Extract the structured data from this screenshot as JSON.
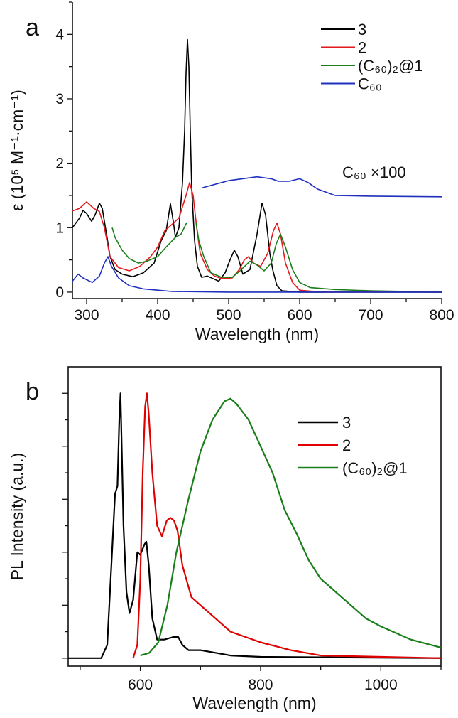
{
  "chart_data": [
    {
      "type": "line",
      "panel": "a",
      "xlabel": "Wavelength (nm)",
      "ylabel": "ε (10⁵ M⁻¹·cm⁻¹)",
      "xlim": [
        280,
        800
      ],
      "ylim": [
        -0.1,
        4.5
      ],
      "xticks": [
        300,
        400,
        500,
        600,
        700,
        800
      ],
      "yticks": [
        0,
        1,
        2,
        3,
        4
      ],
      "legend": "top-right",
      "annotation": "C₆₀ ×100",
      "series": [
        {
          "name": "3",
          "color": "#000000",
          "x": [
            280,
            290,
            295,
            300,
            307,
            312,
            318,
            322,
            328,
            333,
            340,
            350,
            365,
            380,
            395,
            405,
            412,
            418,
            422,
            425,
            430,
            435,
            438,
            440,
            442,
            444,
            446,
            448,
            452,
            456,
            462,
            470,
            480,
            486,
            495,
            502,
            508,
            513,
            520,
            530,
            540,
            547,
            552,
            558,
            562,
            568,
            575,
            600,
            800
          ],
          "y": [
            1.0,
            1.15,
            1.27,
            1.22,
            1.1,
            1.2,
            1.38,
            1.3,
            0.9,
            0.55,
            0.35,
            0.28,
            0.24,
            0.3,
            0.45,
            0.8,
            0.95,
            1.37,
            1.1,
            0.85,
            1.0,
            1.7,
            2.5,
            3.4,
            3.92,
            3.5,
            2.5,
            1.6,
            0.8,
            0.4,
            0.23,
            0.25,
            0.2,
            0.17,
            0.3,
            0.5,
            0.65,
            0.55,
            0.28,
            0.35,
            0.9,
            1.38,
            1.2,
            0.6,
            0.35,
            0.1,
            0.02,
            0,
            0
          ]
        },
        {
          "name": "2",
          "color": "#e31a1c",
          "x": [
            280,
            290,
            300,
            310,
            318,
            325,
            333,
            345,
            360,
            375,
            390,
            400,
            410,
            420,
            430,
            440,
            445,
            450,
            455,
            460,
            470,
            480,
            490,
            505,
            515,
            522,
            528,
            535,
            545,
            555,
            563,
            568,
            573,
            580,
            590,
            600,
            620,
            800
          ],
          "y": [
            1.26,
            1.3,
            1.4,
            1.3,
            1.25,
            1.0,
            0.55,
            0.38,
            0.33,
            0.4,
            0.55,
            0.7,
            0.95,
            1.05,
            1.15,
            1.5,
            1.7,
            1.5,
            1.0,
            0.6,
            0.35,
            0.25,
            0.21,
            0.22,
            0.35,
            0.5,
            0.55,
            0.45,
            0.4,
            0.6,
            0.95,
            1.07,
            0.9,
            0.45,
            0.15,
            0.03,
            0.01,
            0
          ]
        },
        {
          "name": "(C₆₀)₂@1",
          "color": "#1a7f1a",
          "segments": [
            {
              "x": [
                336,
                340,
                350,
                360,
                373,
                385,
                400,
                412,
                425,
                433,
                441
              ],
              "y": [
                1.0,
                0.85,
                0.65,
                0.52,
                0.45,
                0.48,
                0.55,
                0.7,
                0.85,
                0.9,
                1.08
              ]
            },
            {
              "x": [
                454,
                458,
                465,
                475,
                490,
                505,
                515,
                530,
                540,
                550,
                560,
                567,
                573,
                580,
                590,
                600,
                615,
                650,
                700,
                800
              ],
              "y": [
                1.08,
                0.8,
                0.55,
                0.3,
                0.23,
                0.23,
                0.32,
                0.48,
                0.42,
                0.33,
                0.45,
                0.75,
                0.9,
                0.7,
                0.35,
                0.15,
                0.07,
                0.04,
                0.02,
                0
              ]
            }
          ]
        },
        {
          "name": "C₆₀",
          "color": "#1f2fbf",
          "x": [
            280,
            288,
            295,
            308,
            318,
            325,
            330,
            335,
            345,
            360,
            380,
            400,
            420,
            500,
            800
          ],
          "y": [
            0.17,
            0.28,
            0.22,
            0.15,
            0.25,
            0.45,
            0.55,
            0.4,
            0.22,
            0.1,
            0.05,
            0.03,
            0.01,
            0,
            0
          ]
        },
        {
          "name": "C₆₀ ×100",
          "color": "#1f2fbf",
          "in_legend": false,
          "x": [
            463,
            500,
            540,
            560,
            570,
            585,
            600,
            612,
            625,
            650,
            700,
            800
          ],
          "y": [
            1.62,
            1.73,
            1.79,
            1.76,
            1.72,
            1.72,
            1.76,
            1.7,
            1.6,
            1.5,
            1.49,
            1.48
          ]
        }
      ]
    },
    {
      "type": "line",
      "panel": "b",
      "xlabel": "Wavelength (nm)",
      "ylabel": "PL Intensity (a.u.)",
      "xlim": [
        480,
        1100
      ],
      "ylim": [
        -0.03,
        1.1
      ],
      "xticks": [
        600,
        800,
        1000
      ],
      "yticks": [],
      "legend": "top-right",
      "series": [
        {
          "name": "3",
          "color": "#000000",
          "x": [
            480,
            535,
            545,
            553,
            558,
            562,
            565,
            567,
            569,
            572,
            577,
            582,
            588,
            595,
            600,
            607,
            610,
            614,
            620,
            628,
            640,
            655,
            663,
            670,
            680,
            700,
            750,
            800,
            1100
          ],
          "y": [
            0,
            0,
            0.05,
            0.4,
            0.62,
            0.65,
            0.9,
            1.0,
            0.8,
            0.5,
            0.25,
            0.17,
            0.22,
            0.4,
            0.39,
            0.43,
            0.44,
            0.35,
            0.15,
            0.07,
            0.07,
            0.08,
            0.08,
            0.05,
            0.03,
            0.03,
            0.01,
            0.005,
            0
          ]
        },
        {
          "name": "2",
          "color": "#e00000",
          "x": [
            588,
            595,
            600,
            604,
            608,
            611,
            614,
            620,
            628,
            636,
            644,
            650,
            656,
            662,
            670,
            685,
            700,
            725,
            750,
            800,
            850,
            900,
            1000,
            1100
          ],
          "y": [
            0,
            0.05,
            0.3,
            0.7,
            0.95,
            1.0,
            0.92,
            0.7,
            0.5,
            0.46,
            0.52,
            0.53,
            0.52,
            0.48,
            0.35,
            0.23,
            0.2,
            0.15,
            0.1,
            0.06,
            0.03,
            0.01,
            0.005,
            0
          ]
        },
        {
          "name": "(C₆₀)₂@1",
          "color": "#1a7f1a",
          "x": [
            600,
            615,
            630,
            645,
            660,
            680,
            700,
            720,
            740,
            750,
            760,
            780,
            800,
            820,
            840,
            860,
            880,
            900,
            920,
            950,
            975,
            1000,
            1050,
            1100
          ],
          "y": [
            0.01,
            0.02,
            0.06,
            0.2,
            0.4,
            0.6,
            0.78,
            0.9,
            0.97,
            0.98,
            0.96,
            0.9,
            0.8,
            0.7,
            0.56,
            0.47,
            0.37,
            0.3,
            0.26,
            0.2,
            0.15,
            0.12,
            0.07,
            0.04
          ]
        }
      ]
    }
  ],
  "panel_labels": [
    "a",
    "b"
  ]
}
